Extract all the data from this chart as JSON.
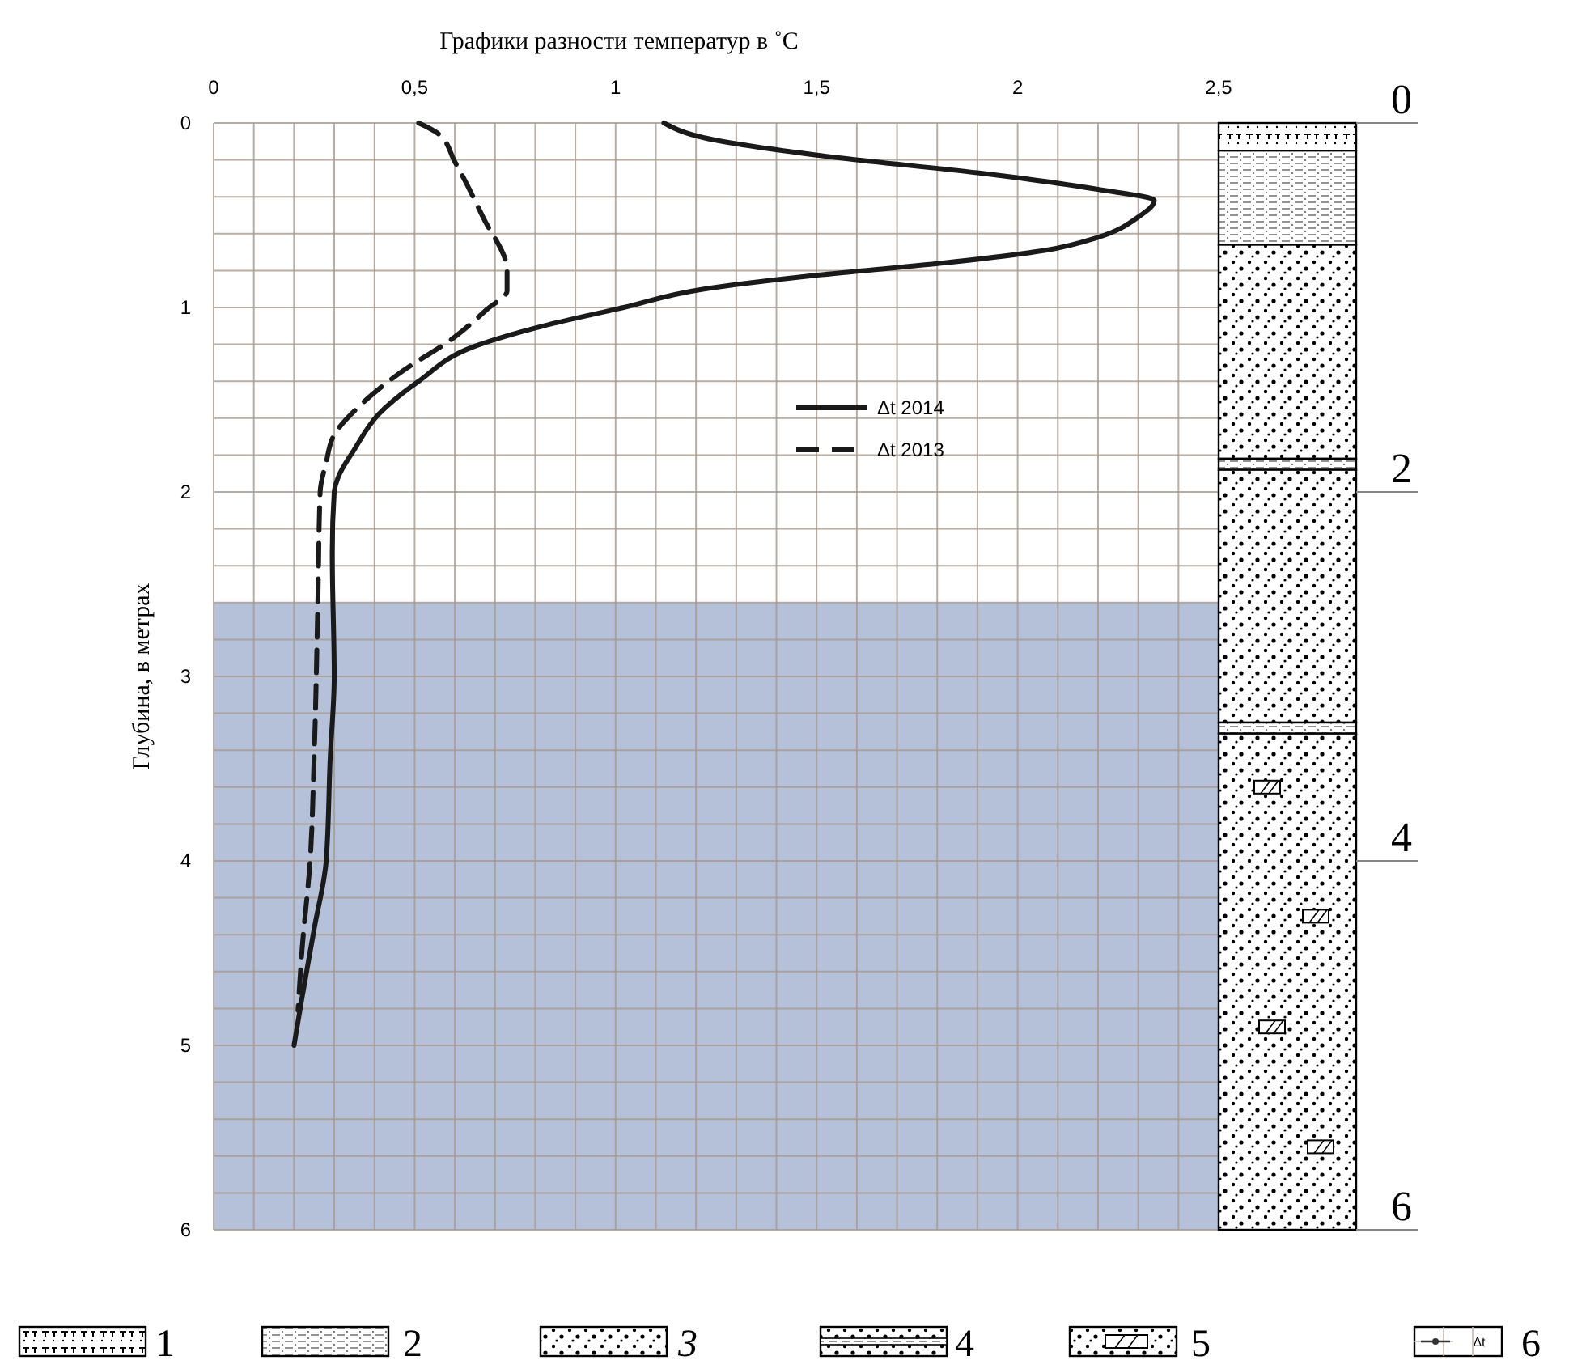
{
  "chart_data": {
    "type": "line",
    "xlabel": "Графики разности температур в ˚С",
    "ylabel": "Глубина, в метрах",
    "xlim": [
      0,
      2.5
    ],
    "xticks": [
      0,
      {
        "value": 0.1,
        "label": null
      },
      {
        "value": 0.2,
        "label": null
      },
      {
        "value": 0.3,
        "label": null
      },
      {
        "value": 0.4,
        "label": null
      },
      {
        "value": 0.5,
        "label": "0,5"
      },
      {
        "value": 0.6,
        "label": null
      },
      {
        "value": 0.7,
        "label": null
      },
      {
        "value": 0.8,
        "label": null
      },
      {
        "value": 0.9,
        "label": null
      },
      1,
      {
        "value": 1.1,
        "label": null
      },
      {
        "value": 1.2,
        "label": null
      },
      {
        "value": 1.3,
        "label": null
      },
      {
        "value": 1.4,
        "label": null
      },
      {
        "value": 1.5,
        "label": "1,5"
      },
      {
        "value": 1.6,
        "label": null
      },
      {
        "value": 1.7,
        "label": null
      },
      {
        "value": 1.8,
        "label": null
      },
      {
        "value": 1.9,
        "label": null
      },
      2,
      {
        "value": 2.1,
        "label": null
      },
      {
        "value": 2.2,
        "label": null
      },
      {
        "value": 2.3,
        "label": null
      },
      {
        "value": 2.4,
        "label": null
      },
      {
        "value": 2.5,
        "label": "2,5"
      }
    ],
    "ylim": [
      6,
      0
    ],
    "yticks": [
      0,
      {
        "value": 0.2,
        "label": null
      },
      {
        "value": 0.4,
        "label": null
      },
      {
        "value": 0.6,
        "label": null
      },
      {
        "value": 0.8,
        "label": null
      },
      1,
      {
        "value": 1.2,
        "label": null
      },
      {
        "value": 1.4,
        "label": null
      },
      {
        "value": 1.6,
        "label": null
      },
      {
        "value": 1.8,
        "label": null
      },
      2,
      {
        "value": 2.2,
        "label": null
      },
      {
        "value": 2.4,
        "label": null
      },
      {
        "value": 2.6,
        "label": null
      },
      {
        "value": 2.8,
        "label": null
      },
      3,
      {
        "value": 3.2,
        "label": null
      },
      {
        "value": 3.4,
        "label": null
      },
      {
        "value": 3.6,
        "label": null
      },
      {
        "value": 3.8,
        "label": null
      },
      4,
      {
        "value": 4.2,
        "label": null
      },
      {
        "value": 4.4,
        "label": null
      },
      {
        "value": 4.6,
        "label": null
      },
      {
        "value": 4.8,
        "label": null
      },
      5,
      {
        "value": 5.2,
        "label": null
      },
      {
        "value": 5.4,
        "label": null
      },
      {
        "value": 5.6,
        "label": null
      },
      {
        "value": 5.8,
        "label": null
      },
      6
    ],
    "y2lim": [
      6,
      0
    ],
    "y2ticks": [
      0,
      2,
      4,
      6
    ],
    "grid": true,
    "legend": "top",
    "series": [
      {
        "name": "Δt 2014",
        "color": "#1a1a1a",
        "line_style": "solid",
        "x": [
          1.12,
          1.22,
          1.56,
          1.9,
          2.2,
          2.34,
          2.3,
          2.2,
          2.07,
          1.81,
          1.48,
          1.22,
          1.02,
          0.82,
          0.65,
          0.51,
          0.41,
          0.35,
          0.31,
          0.3,
          0.295,
          0.3,
          0.29,
          0.28,
          0.25,
          0.22,
          0.2
        ],
        "values": [
          0,
          0.08,
          0.19,
          0.27,
          0.36,
          0.42,
          0.51,
          0.62,
          0.69,
          0.76,
          0.83,
          0.9,
          1.0,
          1.1,
          1.21,
          1.4,
          1.58,
          1.77,
          1.92,
          2.0,
          2.33,
          3.0,
          3.44,
          4.0,
          4.37,
          4.74,
          5.0
        ]
      },
      {
        "name": "Δt 2013",
        "color": "#1a1a1a",
        "line_style": "dashed",
        "x": [
          0.51,
          0.56,
          0.6,
          0.67,
          0.73,
          0.73,
          0.68,
          0.6,
          0.46,
          0.36,
          0.3,
          0.28,
          0.265,
          0.26,
          0.25,
          0.24,
          0.22,
          0.21
        ],
        "values": [
          0,
          0.06,
          0.21,
          0.51,
          0.8,
          0.91,
          1.01,
          1.16,
          1.36,
          1.54,
          1.69,
          1.84,
          2.0,
          2.52,
          3.44,
          4.0,
          4.48,
          4.81
        ]
      }
    ],
    "bands": [
      {
        "axis": "y",
        "from": 2.6,
        "to": 6,
        "color": "#b4c1d9"
      }
    ],
    "annotations": [
      "1",
      "2",
      "3",
      "4",
      "5",
      "6",
      "Δt"
    ]
  }
}
